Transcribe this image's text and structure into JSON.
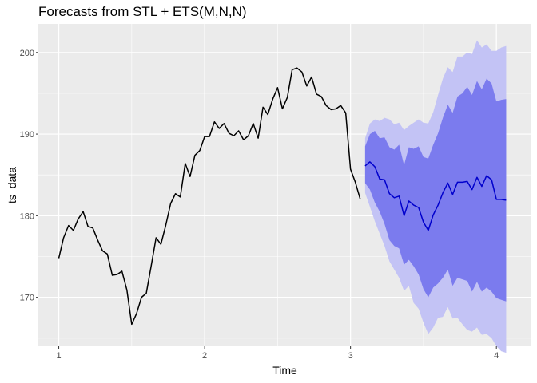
{
  "chart_data": {
    "type": "line",
    "title": "Forecasts from STL +  ETS(M,N,N)",
    "xlabel": "Time",
    "ylabel": "ts_data",
    "xlim": [
      0.86,
      4.24
    ],
    "ylim": [
      164.0,
      203.5
    ],
    "x_ticks": [
      {
        "value": 1,
        "label": "1"
      },
      {
        "value": 2,
        "label": "2"
      },
      {
        "value": 3,
        "label": "3"
      },
      {
        "value": 4,
        "label": "4"
      }
    ],
    "y_ticks": [
      {
        "value": 170,
        "label": "170"
      },
      {
        "value": 180,
        "label": "180"
      },
      {
        "value": 190,
        "label": "190"
      },
      {
        "value": 200,
        "label": "200"
      }
    ],
    "grid": true,
    "legend": "none",
    "colors": {
      "panel": "#ebebeb",
      "grid": "#ffffff",
      "observed": "#000000",
      "forecast": "#0000cc",
      "band80": "#7b7bee",
      "band95": "#c3c3f5"
    },
    "observed": {
      "x": [
        1.0,
        1.033,
        1.067,
        1.1,
        1.133,
        1.167,
        1.2,
        1.233,
        1.267,
        1.3,
        1.333,
        1.367,
        1.4,
        1.433,
        1.467,
        1.5,
        1.533,
        1.567,
        1.6,
        1.633,
        1.667,
        1.7,
        1.733,
        1.767,
        1.8,
        1.833,
        1.867,
        1.9,
        1.933,
        1.967,
        2.0,
        2.033,
        2.067,
        2.1,
        2.133,
        2.167,
        2.2,
        2.233,
        2.267,
        2.3,
        2.333,
        2.367,
        2.4,
        2.433,
        2.467,
        2.5,
        2.533,
        2.567,
        2.6,
        2.633,
        2.667,
        2.7,
        2.733,
        2.767,
        2.8,
        2.833,
        2.867,
        2.9,
        2.933,
        2.967,
        3.0,
        3.033,
        3.067
      ],
      "y": [
        174.8,
        177.3,
        178.8,
        178.2,
        179.6,
        180.5,
        178.7,
        178.5,
        177.0,
        175.7,
        175.3,
        172.7,
        172.8,
        173.2,
        170.9,
        166.7,
        168.0,
        170.0,
        170.5,
        173.8,
        177.3,
        176.5,
        178.8,
        181.5,
        182.7,
        182.3,
        186.4,
        184.8,
        187.4,
        188.0,
        189.7,
        189.7,
        191.5,
        190.7,
        191.3,
        190.1,
        189.8,
        190.4,
        189.3,
        189.8,
        191.3,
        189.5,
        193.3,
        192.4,
        194.3,
        195.7,
        193.1,
        194.5,
        197.9,
        198.1,
        197.6,
        195.9,
        197.0,
        194.9,
        194.6,
        193.5,
        193.0,
        193.1,
        193.5,
        192.6,
        185.7,
        184.1,
        182.0
      ]
    },
    "forecast": {
      "x": [
        3.1,
        3.133,
        3.167,
        3.2,
        3.233,
        3.267,
        3.3,
        3.333,
        3.367,
        3.4,
        3.433,
        3.467,
        3.5,
        3.533,
        3.567,
        3.6,
        3.633,
        3.667,
        3.7,
        3.733,
        3.767,
        3.8,
        3.833,
        3.867,
        3.9,
        3.933,
        3.967,
        4.0,
        4.033,
        4.067
      ],
      "mean": [
        186.1,
        186.6,
        186.0,
        184.5,
        184.4,
        182.7,
        182.2,
        182.4,
        180.0,
        181.8,
        181.3,
        181.0,
        179.2,
        178.2,
        180.1,
        181.3,
        182.8,
        184.0,
        182.6,
        184.1,
        184.1,
        184.2,
        183.2,
        184.7,
        183.6,
        184.9,
        184.4,
        182.0,
        182.0,
        181.9
      ],
      "lower80": [
        184.0,
        183.2,
        181.6,
        180.5,
        179.0,
        177.0,
        176.3,
        176.0,
        174.0,
        174.6,
        173.8,
        172.8,
        171.0,
        170.0,
        171.2,
        171.7,
        172.4,
        173.4,
        171.4,
        172.4,
        172.2,
        172.0,
        170.7,
        171.9,
        170.7,
        171.2,
        170.7,
        169.9,
        169.7,
        169.5
      ],
      "upper80": [
        188.5,
        190.0,
        190.4,
        189.5,
        189.6,
        188.4,
        188.1,
        188.7,
        186.2,
        188.4,
        188.2,
        188.5,
        187.2,
        187.0,
        188.7,
        190.1,
        192.0,
        193.6,
        192.6,
        194.6,
        195.0,
        195.8,
        194.8,
        196.5,
        195.5,
        196.8,
        196.2,
        194.0,
        194.2,
        194.3
      ],
      "lower95": [
        182.8,
        181.1,
        179.3,
        177.8,
        176.3,
        174.4,
        173.4,
        172.4,
        170.8,
        171.4,
        169.3,
        168.6,
        166.9,
        165.5,
        166.3,
        167.5,
        167.6,
        168.8,
        167.4,
        167.5,
        166.7,
        166.0,
        165.8,
        166.3,
        165.4,
        165.5,
        165.0,
        164.0,
        163.4,
        163.2
      ],
      "upper95": [
        189.5,
        191.3,
        191.8,
        191.6,
        192.0,
        191.8,
        191.2,
        191.4,
        190.5,
        191.0,
        191.4,
        191.8,
        191.4,
        191.3,
        192.7,
        194.8,
        196.8,
        198.2,
        197.6,
        199.5,
        199.5,
        200.0,
        199.8,
        201.5,
        200.6,
        201.0,
        200.2,
        200.2,
        200.6,
        200.8
      ]
    }
  }
}
